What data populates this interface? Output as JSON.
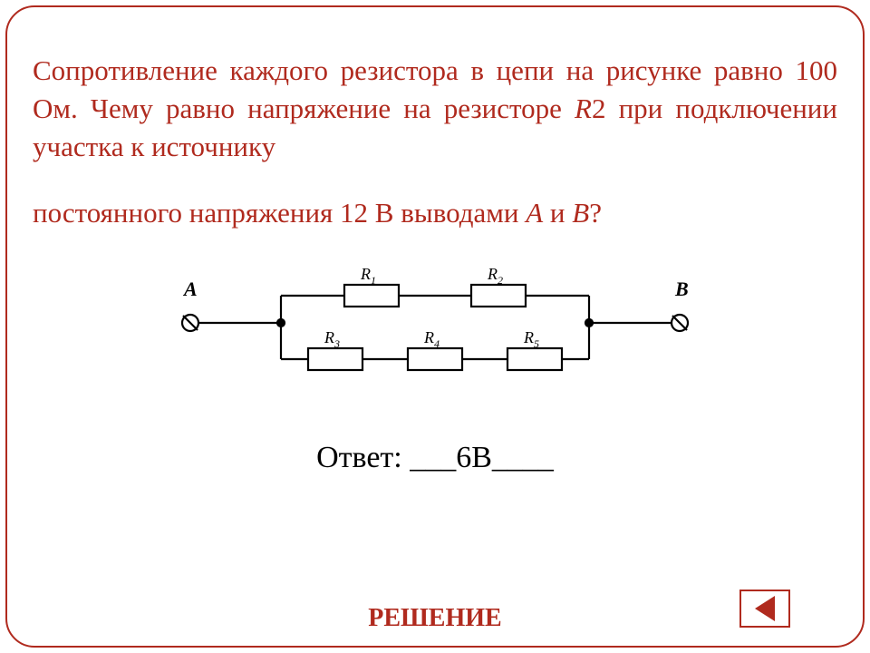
{
  "problem": {
    "paragraph1_parts": [
      {
        "t": "Сопротивление каждого резистора в цепи на рисунке равно 100 Ом. Чему равно напряжение на резисторе ",
        "italic": false
      },
      {
        "t": "R",
        "italic": true
      },
      {
        "t": "2 при подключении участка к источнику",
        "italic": false
      }
    ],
    "paragraph2_parts": [
      {
        "t": "постоянного напряжения 12 В выводами ",
        "italic": false
      },
      {
        "t": "A",
        "italic": true
      },
      {
        "t": " и ",
        "italic": false
      },
      {
        "t": "B",
        "italic": true
      },
      {
        "t": "?",
        "italic": false
      }
    ]
  },
  "circuit": {
    "stroke": "#000000",
    "stroke_width": 2.2,
    "terminalA": "A",
    "terminalB": "B",
    "resistors": {
      "R1": "R",
      "R2": "R",
      "R3": "R",
      "R4": "R",
      "R5": "R"
    },
    "subs": {
      "R1": "1",
      "R2": "2",
      "R3": "3",
      "R4": "4",
      "R5": "5"
    }
  },
  "answer": {
    "label": "Ответ:",
    "blank_pre": "___",
    "value": "6В",
    "blank_post": "____"
  },
  "solution_label": "РЕШЕНИЕ",
  "colors": {
    "accent": "#b02a1e",
    "text_black": "#000000",
    "background": "#ffffff"
  }
}
